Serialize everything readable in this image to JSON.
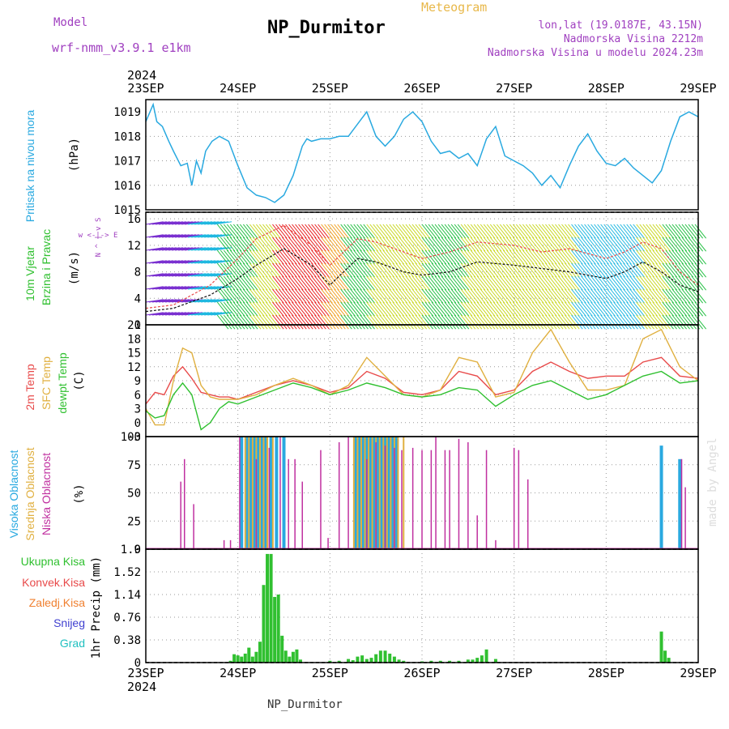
{
  "header": {
    "title": "NP_Durmitor",
    "model_label": "Model",
    "model_name": "wrf-nmm_v3.9.1 e1km",
    "meteogram_label": "Meteogram",
    "coords": "lon,lat (19.0187E, 43.15N)",
    "elevation": "Nadmorska Visina 2212m",
    "model_elevation": "Nadmorska Visina u modelu 2024.23m",
    "year_top": "2024",
    "year_bottom": "2024",
    "footer": "NP_Durmitor",
    "credit": "made by Angel"
  },
  "time_axis": [
    "23SEP",
    "24SEP",
    "25SEP",
    "26SEP",
    "27SEP",
    "28SEP",
    "29SEP"
  ],
  "chart_data": [
    {
      "type": "line",
      "name": "pressure",
      "ylabel_left": "Pritisak na nivou mora",
      "ylabel_unit": "(hPa)",
      "ylim": [
        1015,
        1019.5
      ],
      "yticks": [
        1015,
        1016,
        1017,
        1018,
        1019
      ],
      "color": "#29a9e0",
      "x": [
        0,
        0.08,
        0.12,
        0.18,
        0.25,
        0.3,
        0.38,
        0.45,
        0.5,
        0.55,
        0.6,
        0.65,
        0.72,
        0.8,
        0.9,
        1.0,
        1.1,
        1.2,
        1.3,
        1.4,
        1.5,
        1.6,
        1.7,
        1.75,
        1.8,
        1.9,
        2.0,
        2.1,
        2.2,
        2.3,
        2.4,
        2.45,
        2.5,
        2.6,
        2.7,
        2.8,
        2.9,
        3.0,
        3.1,
        3.2,
        3.3,
        3.4,
        3.5,
        3.6,
        3.7,
        3.8,
        3.9,
        4.0,
        4.1,
        4.2,
        4.3,
        4.4,
        4.5,
        4.6,
        4.7,
        4.8,
        4.9,
        5.0,
        5.1,
        5.2,
        5.3,
        5.4,
        5.5,
        5.6,
        5.7,
        5.8,
        5.9,
        6.0
      ],
      "y": [
        1018.6,
        1019.3,
        1018.6,
        1018.4,
        1017.8,
        1017.4,
        1016.8,
        1016.9,
        1016.0,
        1017.0,
        1016.5,
        1017.4,
        1017.8,
        1018.0,
        1017.8,
        1016.8,
        1015.9,
        1015.6,
        1015.5,
        1015.3,
        1015.6,
        1016.4,
        1017.6,
        1017.9,
        1017.8,
        1017.9,
        1017.9,
        1018.0,
        1018.0,
        1018.5,
        1019.0,
        1018.5,
        1018.0,
        1017.6,
        1018.0,
        1018.7,
        1019.0,
        1018.6,
        1017.8,
        1017.3,
        1017.4,
        1017.1,
        1017.3,
        1016.8,
        1017.9,
        1018.4,
        1017.2,
        1017.0,
        1016.8,
        1016.5,
        1016.0,
        1016.4,
        1015.9,
        1016.8,
        1017.6,
        1018.1,
        1017.4,
        1016.9,
        1016.8,
        1017.1,
        1016.7,
        1016.4,
        1016.1,
        1016.6,
        1017.8,
        1018.8,
        1019.0,
        1018.8
      ]
    },
    {
      "type": "line",
      "name": "wind",
      "ylabel_left_1": "10m Vjetar",
      "ylabel_left_2": "Brzina i Pravac",
      "ylabel_unit": "(m/s)",
      "ylim": [
        0,
        17
      ],
      "yticks": [
        0,
        4,
        8,
        12,
        16
      ],
      "compass": "w <-|-> E",
      "compass_vertical": "N ^ | v S",
      "speed_color": "#111111",
      "gust_color": "#e84a4a",
      "x": [
        0,
        0.3,
        0.5,
        0.7,
        1.0,
        1.2,
        1.5,
        1.8,
        2.0,
        2.3,
        2.5,
        2.8,
        3.0,
        3.3,
        3.6,
        4.0,
        4.3,
        4.6,
        5.0,
        5.2,
        5.4,
        5.6,
        5.8,
        6.0
      ],
      "speed": [
        2,
        2.5,
        3.5,
        4.5,
        7,
        9,
        11.5,
        9,
        6,
        10,
        9.5,
        8,
        7.5,
        8,
        9.5,
        9,
        8.5,
        8,
        7,
        8,
        9.5,
        8,
        6,
        5
      ],
      "gust": [
        2.5,
        3,
        4.5,
        6,
        10,
        13,
        15,
        12,
        9,
        13,
        12.5,
        11,
        10,
        11,
        12.5,
        12,
        11,
        11.5,
        10,
        11,
        12.5,
        11.5,
        8,
        6
      ],
      "barb_color_scale": [
        "#2020c0",
        "#7a30d0",
        "#20b8e0",
        "#20c040",
        "#c8d820",
        "#f0a020",
        "#e82020"
      ]
    },
    {
      "type": "line",
      "name": "temperature",
      "ylabel_left_1": "2m Temp",
      "ylabel_left_2": "SFC Temp",
      "ylabel_left_3": "dewpt Temp",
      "ylabel_unit": "(C)",
      "ylim": [
        -3,
        21
      ],
      "yticks": [
        -3,
        0,
        3,
        6,
        9,
        12,
        15,
        18,
        21
      ],
      "x": [
        0,
        0.1,
        0.2,
        0.3,
        0.4,
        0.5,
        0.6,
        0.7,
        0.8,
        0.9,
        1.0,
        1.2,
        1.4,
        1.6,
        1.8,
        2.0,
        2.2,
        2.4,
        2.6,
        2.8,
        3.0,
        3.2,
        3.4,
        3.6,
        3.8,
        4.0,
        4.2,
        4.4,
        4.6,
        4.8,
        5.0,
        5.2,
        5.4,
        5.6,
        5.8,
        6.0
      ],
      "series": [
        {
          "name": "2m Temp",
          "color": "#e84a4a",
          "values": [
            4,
            6.5,
            6,
            10,
            12,
            9.5,
            6.5,
            6,
            5.5,
            5.5,
            5,
            6.5,
            8,
            9,
            8,
            6.5,
            7.5,
            11,
            9.5,
            6.5,
            6,
            7,
            11,
            10,
            6,
            7,
            11,
            13,
            11,
            9.5,
            10,
            10,
            13,
            14,
            10,
            9.5
          ]
        },
        {
          "name": "SFC Temp",
          "color": "#e0b040",
          "values": [
            3,
            -0.5,
            -0.5,
            9,
            16,
            15,
            8,
            5.5,
            5,
            5,
            5,
            6,
            8,
            9.5,
            8,
            6,
            8,
            14,
            10,
            6,
            5.5,
            7,
            14,
            13,
            5.5,
            6.5,
            15,
            20,
            13,
            7,
            7,
            8,
            18,
            20,
            12,
            9
          ]
        },
        {
          "name": "dewpt Temp",
          "color": "#30c030",
          "values": [
            2.5,
            1,
            1.5,
            6,
            8.5,
            6,
            -1.5,
            0,
            3,
            4.5,
            4,
            5.5,
            7,
            8.5,
            7.5,
            6,
            7,
            8.5,
            7.5,
            6,
            5.5,
            6,
            7.5,
            7,
            3.5,
            6,
            8,
            9,
            7,
            5,
            6,
            8,
            10,
            11,
            8.5,
            9
          ]
        }
      ]
    },
    {
      "type": "bar",
      "name": "clouds",
      "ylabel_left_1": "Visoka Oblacnost",
      "ylabel_left_2": "Srednja Oblacnost",
      "ylabel_left_3": "Niska Oblacnost",
      "ylabel_unit": "(%)",
      "ylim": [
        0,
        100
      ],
      "yticks": [
        0,
        25,
        50,
        75,
        100
      ],
      "series": [
        {
          "name": "Visoka",
          "color": "#29a9e0",
          "x": [
            1.04,
            1.1,
            1.14,
            1.18,
            1.22,
            1.26,
            1.3,
            1.36,
            1.42,
            1.5,
            2.28,
            2.32,
            2.36,
            2.4,
            2.44,
            2.48,
            2.52,
            2.56,
            2.6,
            2.64,
            2.68,
            2.72,
            5.6,
            5.8
          ],
          "values": [
            100,
            100,
            100,
            100,
            100,
            100,
            100,
            100,
            100,
            100,
            100,
            100,
            100,
            100,
            100,
            100,
            100,
            100,
            100,
            100,
            100,
            100,
            92,
            80
          ]
        },
        {
          "name": "Srednja",
          "color": "#e0b040",
          "x": [
            1.08,
            1.12,
            1.16,
            1.2,
            1.24,
            1.28,
            1.32,
            1.38,
            2.26,
            2.3,
            2.34,
            2.38,
            2.42,
            2.46,
            2.5,
            2.54,
            2.58,
            2.62,
            2.66,
            2.7,
            2.74,
            2.8
          ],
          "values": [
            100,
            100,
            100,
            100,
            100,
            100,
            100,
            100,
            100,
            100,
            100,
            100,
            100,
            100,
            100,
            100,
            100,
            100,
            100,
            100,
            100,
            100
          ]
        },
        {
          "name": "Niska",
          "color": "#c030a0",
          "x": [
            0.38,
            0.42,
            0.52,
            0.85,
            0.92,
            1.02,
            1.2,
            1.34,
            1.46,
            1.55,
            1.62,
            1.7,
            1.9,
            1.98,
            2.1,
            2.2,
            2.4,
            2.5,
            2.6,
            2.7,
            2.78,
            2.9,
            3.0,
            3.1,
            3.15,
            3.25,
            3.3,
            3.4,
            3.5,
            3.6,
            3.7,
            3.8,
            4.0,
            4.05,
            4.15,
            5.82,
            5.86
          ],
          "values": [
            60,
            80,
            40,
            8,
            8,
            100,
            80,
            90,
            100,
            80,
            80,
            60,
            88,
            10,
            95,
            100,
            80,
            95,
            92,
            90,
            88,
            90,
            88,
            88,
            100,
            88,
            88,
            98,
            95,
            30,
            88,
            8,
            90,
            88,
            62,
            80,
            55
          ]
        }
      ]
    },
    {
      "type": "bar",
      "name": "precipitation",
      "ylabel_left_1": "Ukupna Kisa",
      "ylabel_left_2": "Konvek.Kisa",
      "ylabel_left_3": "Zaledj.Kisa",
      "ylabel_left_4": "Snijeg",
      "ylabel_left_5": "Grad",
      "ylabel_unit": "1hr Precip (mm)",
      "ylim": [
        0,
        1.9
      ],
      "yticks": [
        0,
        0.38,
        0.76,
        1.14,
        1.52,
        1.9
      ],
      "ytick_labels": [
        "0",
        "0.38",
        "0.76",
        "1.14",
        "1.52",
        "1.9"
      ],
      "color": "#30c030",
      "x": [
        0.92,
        0.96,
        1.0,
        1.04,
        1.08,
        1.12,
        1.16,
        1.2,
        1.24,
        1.28,
        1.32,
        1.36,
        1.4,
        1.44,
        1.48,
        1.52,
        1.56,
        1.6,
        1.64,
        1.68,
        2.0,
        2.1,
        2.2,
        2.25,
        2.3,
        2.35,
        2.4,
        2.45,
        2.5,
        2.55,
        2.6,
        2.65,
        2.7,
        2.75,
        2.8,
        3.0,
        3.1,
        3.2,
        3.3,
        3.4,
        3.5,
        3.55,
        3.6,
        3.65,
        3.7,
        3.8,
        5.6,
        5.64,
        5.68
      ],
      "values": [
        0.03,
        0.14,
        0.12,
        0.1,
        0.15,
        0.25,
        0.1,
        0.18,
        0.35,
        1.3,
        1.82,
        1.82,
        1.1,
        1.14,
        0.45,
        0.2,
        0.1,
        0.18,
        0.22,
        0.05,
        0.03,
        0.03,
        0.06,
        0.04,
        0.1,
        0.12,
        0.06,
        0.08,
        0.14,
        0.2,
        0.2,
        0.15,
        0.1,
        0.05,
        0.03,
        0.02,
        0.03,
        0.03,
        0.03,
        0.03,
        0.05,
        0.05,
        0.08,
        0.12,
        0.22,
        0.06,
        0.52,
        0.2,
        0.08
      ]
    }
  ]
}
